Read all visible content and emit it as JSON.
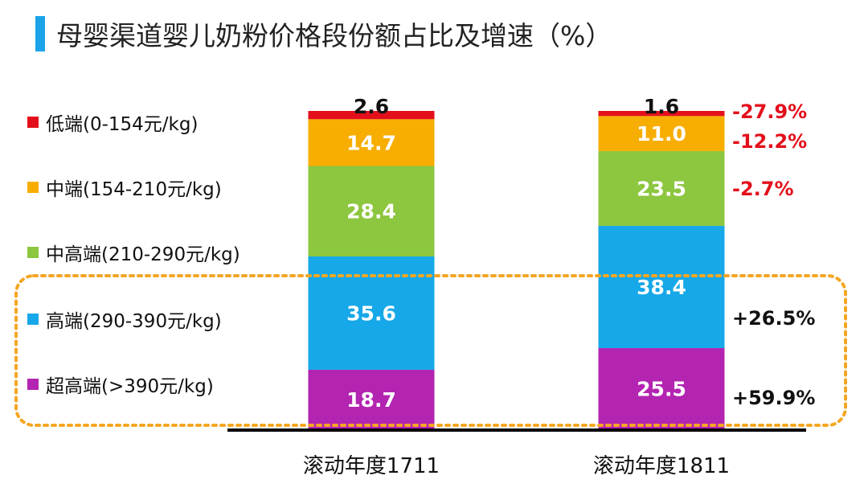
{
  "title": "母婴渠道婴儿奶粉价格段份额占比及增速（%）",
  "colors": {
    "accent": "#1AA3E8",
    "low": "#E3101C",
    "mid": "#F7AE00",
    "midhigh": "#8DC63F",
    "high": "#16A8E8",
    "ultra": "#B324B1",
    "growth_negative": "#E3101C",
    "growth_positive": "#111111",
    "highlight_box": "#F5A623"
  },
  "chart_data": {
    "type": "bar",
    "stacked": true,
    "title": "母婴渠道婴儿奶粉价格段份额占比及增速（%）",
    "categories": [
      "滚动年度1711",
      "滚动年度1811"
    ],
    "series": [
      {
        "key": "ultra",
        "name": "超高端(>390元/kg)",
        "values": [
          18.7,
          25.5
        ],
        "growth": "+59.9%"
      },
      {
        "key": "high",
        "name": "高端(290-390元/kg)",
        "values": [
          35.6,
          38.4
        ],
        "growth": "+26.5%"
      },
      {
        "key": "midhigh",
        "name": "中高端(210-290元/kg)",
        "values": [
          28.4,
          23.5
        ],
        "growth": "-2.7%"
      },
      {
        "key": "mid",
        "name": "中端(154-210元/kg)",
        "values": [
          14.7,
          11.0
        ],
        "growth": "-12.2%"
      },
      {
        "key": "low",
        "name": "低端(0-154元/kg)",
        "values": [
          2.6,
          1.6
        ],
        "growth": "-27.9%"
      }
    ],
    "ylim": [
      0,
      100
    ],
    "grid": false,
    "legend_position": "left",
    "highlight": "高端 and 超高端 segments enclosed by dashed orange box"
  }
}
